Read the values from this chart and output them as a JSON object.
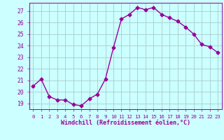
{
  "x": [
    0,
    1,
    2,
    3,
    4,
    5,
    6,
    7,
    8,
    9,
    10,
    11,
    12,
    13,
    14,
    15,
    16,
    17,
    18,
    19,
    20,
    21,
    22,
    23
  ],
  "y": [
    20.5,
    21.1,
    19.6,
    19.3,
    19.3,
    18.9,
    18.8,
    19.4,
    19.8,
    21.1,
    23.8,
    26.3,
    26.7,
    27.3,
    27.1,
    27.3,
    26.7,
    26.4,
    26.1,
    25.6,
    25.0,
    24.1,
    23.9,
    23.4
  ],
  "line_color": "#990099",
  "marker": "D",
  "marker_size": 2.5,
  "bg_color": "#ccffff",
  "grid_color": "#aacccc",
  "xlabel": "Windchill (Refroidissement éolien,°C)",
  "ylabel_ticks": [
    19,
    20,
    21,
    22,
    23,
    24,
    25,
    26,
    27
  ],
  "xlim": [
    -0.5,
    23.5
  ],
  "ylim": [
    18.5,
    27.7
  ],
  "xtick_fontsize": 5.2,
  "ytick_fontsize": 5.8,
  "xlabel_fontsize": 6.0,
  "xlabel_bold": true
}
